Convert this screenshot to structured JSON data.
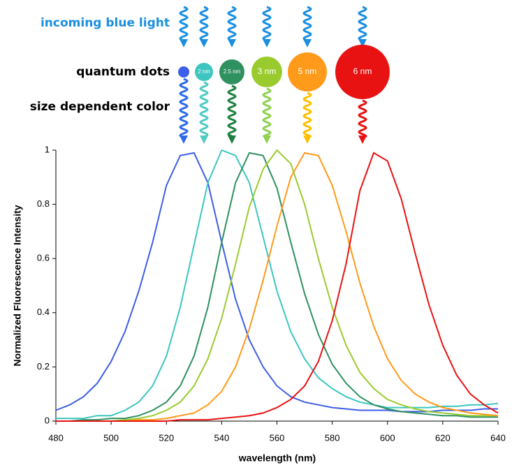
{
  "chart_data": {
    "type": "line",
    "annotations": [
      "incoming blue light",
      "quantum dots",
      "size dependent color"
    ],
    "dot_labels": [
      "2 nm",
      "2.5 nm",
      "3 nm",
      "5 nm",
      "6 nm"
    ],
    "xlabel": "wavelength (nm)",
    "ylabel": "Normalized Fluorescence Intensity",
    "x": [
      480,
      485,
      490,
      495,
      500,
      505,
      510,
      515,
      520,
      525,
      530,
      535,
      540,
      545,
      550,
      555,
      560,
      565,
      570,
      575,
      580,
      585,
      590,
      595,
      600,
      605,
      610,
      615,
      620,
      625,
      630,
      635,
      640
    ],
    "series": [
      {
        "color": "#3d5ee8",
        "values": [
          0.04,
          0.06,
          0.09,
          0.14,
          0.22,
          0.33,
          0.48,
          0.66,
          0.87,
          0.98,
          0.99,
          0.88,
          0.66,
          0.45,
          0.3,
          0.2,
          0.13,
          0.09,
          0.07,
          0.06,
          0.05,
          0.045,
          0.04,
          0.04,
          0.04,
          0.035,
          0.035,
          0.035,
          0.04,
          0.04,
          0.04,
          0.045,
          0.045
        ]
      },
      {
        "color": "#3cc6bf",
        "values": [
          0.01,
          0.01,
          0.01,
          0.02,
          0.02,
          0.04,
          0.07,
          0.13,
          0.24,
          0.42,
          0.65,
          0.88,
          1.0,
          0.98,
          0.88,
          0.68,
          0.48,
          0.33,
          0.23,
          0.16,
          0.12,
          0.09,
          0.07,
          0.06,
          0.05,
          0.05,
          0.05,
          0.05,
          0.055,
          0.055,
          0.06,
          0.06,
          0.065
        ]
      },
      {
        "color": "#2f9060",
        "values": [
          0,
          0,
          0.005,
          0.005,
          0.01,
          0.01,
          0.02,
          0.04,
          0.07,
          0.13,
          0.24,
          0.42,
          0.66,
          0.88,
          0.99,
          0.98,
          0.86,
          0.66,
          0.47,
          0.32,
          0.21,
          0.14,
          0.09,
          0.06,
          0.045,
          0.035,
          0.03,
          0.025,
          0.02,
          0.02,
          0.015,
          0.015,
          0.015
        ]
      },
      {
        "color": "#9acb2e",
        "values": [
          0,
          0,
          0,
          0,
          0,
          0.005,
          0.01,
          0.02,
          0.04,
          0.07,
          0.13,
          0.23,
          0.38,
          0.58,
          0.79,
          0.93,
          1.0,
          0.95,
          0.8,
          0.6,
          0.42,
          0.28,
          0.18,
          0.12,
          0.08,
          0.06,
          0.045,
          0.035,
          0.03,
          0.025,
          0.02,
          0.02,
          0.02
        ]
      },
      {
        "color": "#ff9a1a",
        "values": [
          0,
          0,
          0,
          0,
          0,
          0,
          0.005,
          0.005,
          0.01,
          0.02,
          0.03,
          0.06,
          0.11,
          0.2,
          0.34,
          0.52,
          0.72,
          0.9,
          0.99,
          0.98,
          0.87,
          0.7,
          0.51,
          0.35,
          0.23,
          0.15,
          0.1,
          0.07,
          0.05,
          0.04,
          0.03,
          0.025,
          0.02
        ]
      },
      {
        "color": "#e81212",
        "values": [
          0,
          0,
          0,
          0,
          0,
          0,
          0,
          0,
          0,
          0.005,
          0.005,
          0.005,
          0.01,
          0.015,
          0.02,
          0.03,
          0.05,
          0.08,
          0.13,
          0.22,
          0.37,
          0.58,
          0.85,
          0.99,
          0.96,
          0.82,
          0.62,
          0.43,
          0.28,
          0.17,
          0.1,
          0.06,
          0.03
        ]
      }
    ],
    "xlim": [
      480,
      640
    ],
    "xticks": [
      480,
      500,
      520,
      540,
      560,
      580,
      600,
      620,
      640
    ],
    "ylim": [
      0,
      1
    ],
    "yticks": [
      0,
      0.2,
      0.4,
      0.6,
      0.8,
      1
    ]
  }
}
